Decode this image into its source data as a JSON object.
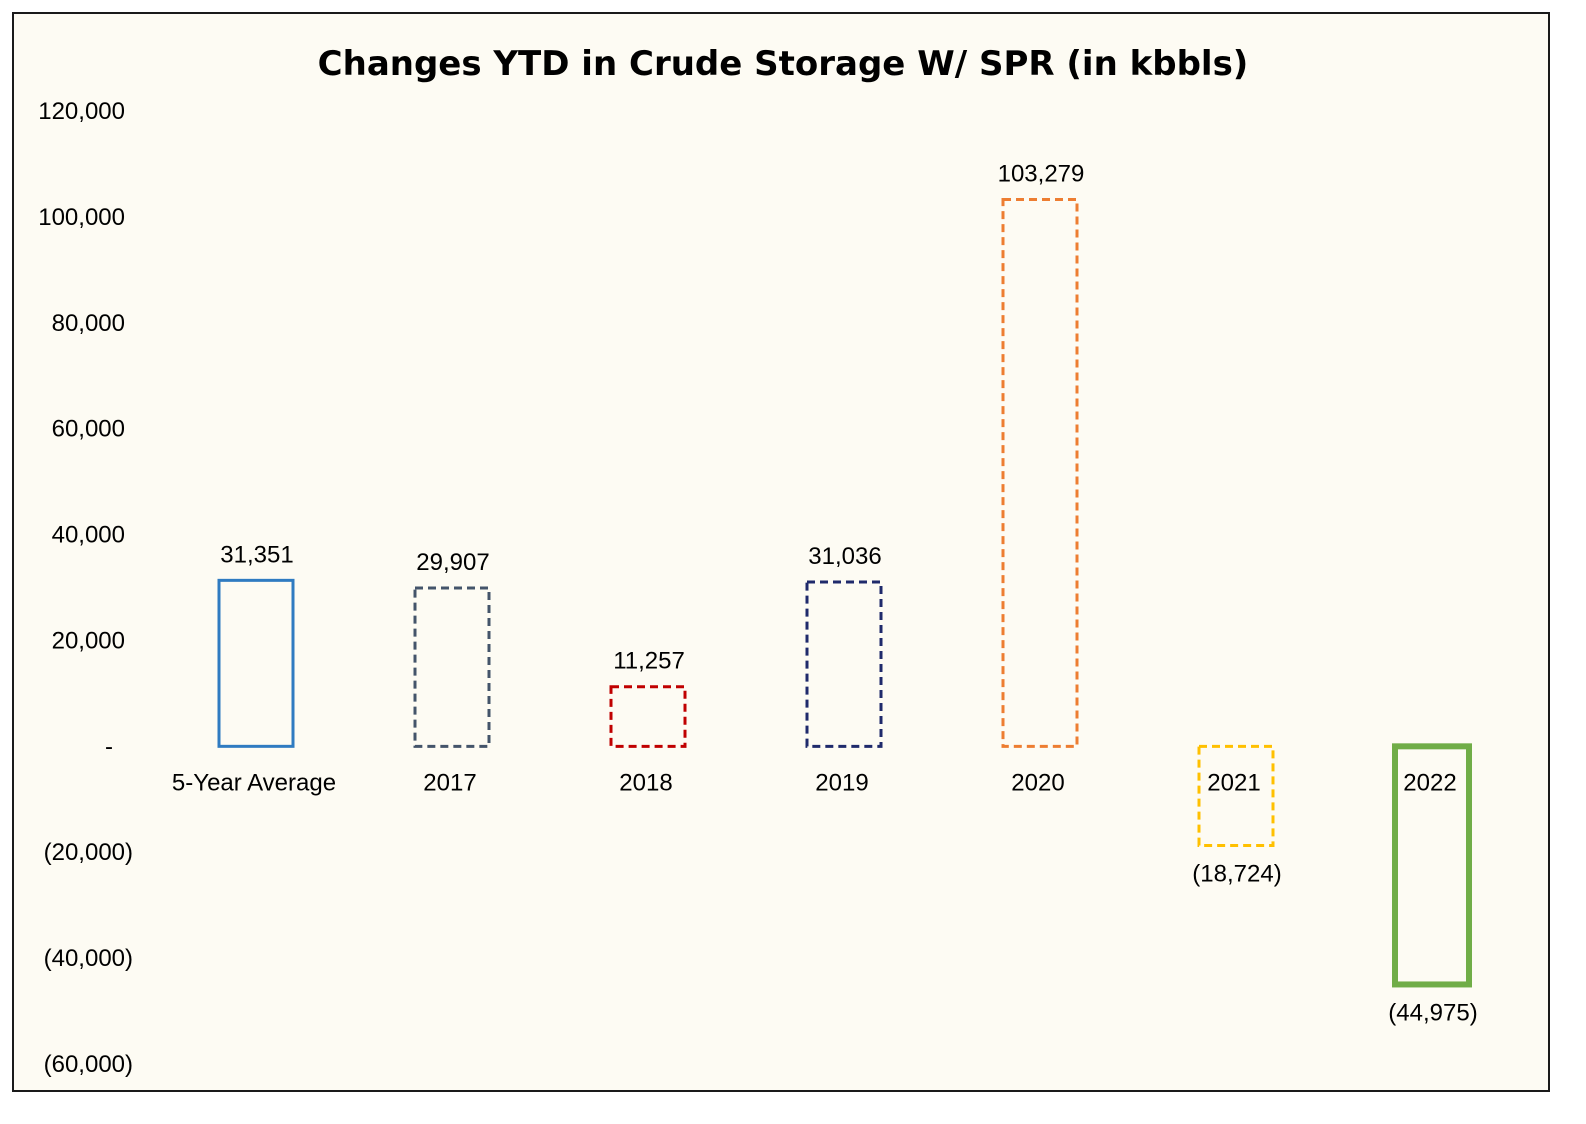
{
  "chart_data": {
    "type": "bar",
    "title": "Changes YTD in Crude Storage W/ SPR (in kbbls)",
    "xlabel": "",
    "ylabel": "",
    "ylim": [
      -60000,
      120000
    ],
    "y_ticks": [
      {
        "value": 120000,
        "label": "120,000"
      },
      {
        "value": 100000,
        "label": "100,000"
      },
      {
        "value": 80000,
        "label": "80,000"
      },
      {
        "value": 60000,
        "label": "60,000"
      },
      {
        "value": 40000,
        "label": "40,000"
      },
      {
        "value": 20000,
        "label": "20,000"
      },
      {
        "value": 0,
        "label": "-"
      },
      {
        "value": -20000,
        "label": "(20,000)"
      },
      {
        "value": -40000,
        "label": "(40,000)"
      },
      {
        "value": -60000,
        "label": "(60,000)"
      }
    ],
    "grid": false,
    "legend": "none",
    "categories": [
      "5-Year Average",
      "2017",
      "2018",
      "2019",
      "2020",
      "2021",
      "2022"
    ],
    "values": [
      31351,
      29907,
      11257,
      31036,
      103279,
      -18724,
      -44975
    ],
    "value_labels": [
      "31,351",
      "29,907",
      "11,257",
      "31,036",
      "103,279",
      "(18,724)",
      "(44,975)"
    ],
    "bar_style": [
      {
        "color": "#2f7bc1",
        "dash": false,
        "width": 3
      },
      {
        "color": "#44546a",
        "dash": true,
        "width": 3
      },
      {
        "color": "#c00000",
        "dash": true,
        "width": 3
      },
      {
        "color": "#1f2a6b",
        "dash": true,
        "width": 3
      },
      {
        "color": "#ed7d31",
        "dash": true,
        "width": 3
      },
      {
        "color": "#ffc000",
        "dash": true,
        "width": 3
      },
      {
        "color": "#70ad47",
        "dash": false,
        "width": 6
      }
    ]
  }
}
